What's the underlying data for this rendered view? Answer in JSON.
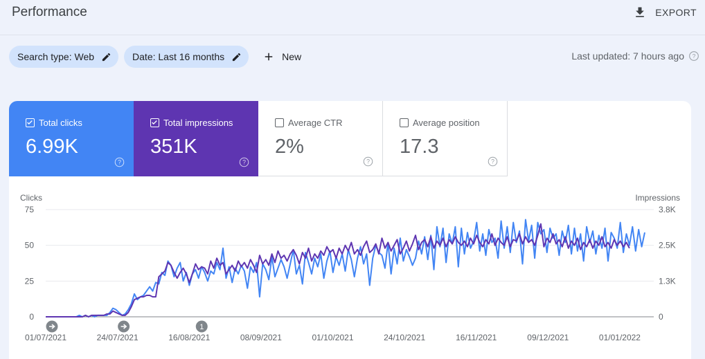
{
  "header": {
    "title": "Performance",
    "export_label": "EXPORT"
  },
  "filters": {
    "search_type": "Search type: Web",
    "date": "Date: Last 16 months",
    "new_label": "New"
  },
  "status": {
    "last_updated": "Last updated: 7 hours ago"
  },
  "metrics": [
    {
      "label": "Total clicks",
      "value": "6.99K",
      "checked": true
    },
    {
      "label": "Total impressions",
      "value": "351K",
      "checked": true
    },
    {
      "label": "Average CTR",
      "value": "2%",
      "checked": false
    },
    {
      "label": "Average position",
      "value": "17.3",
      "checked": false
    }
  ],
  "colors": {
    "clicks": "#4285f4",
    "impressions": "#5e35b1",
    "chip": "#d2e3fc"
  },
  "chart_data": {
    "type": "line",
    "left_axis": {
      "label": "Clicks",
      "ticks": [
        "0",
        "25",
        "50",
        "75"
      ],
      "ylim": [
        0,
        75
      ]
    },
    "right_axis": {
      "label": "Impressions",
      "ticks": [
        "0",
        "1.3K",
        "2.5K",
        "3.8K"
      ],
      "ylim": [
        0,
        3800
      ]
    },
    "x_tick_labels": [
      "01/07/2021",
      "24/07/2021",
      "16/08/2021",
      "08/09/2021",
      "01/10/2021",
      "24/10/2021",
      "16/11/2021",
      "09/12/2021",
      "01/01/2022"
    ],
    "annotations": [
      {
        "day": 0,
        "kind": "arrow",
        "label": ""
      },
      {
        "day": 23,
        "kind": "arrow",
        "label": ""
      },
      {
        "day": 48,
        "kind": "number",
        "label": "1"
      }
    ],
    "series": [
      {
        "name": "Total clicks",
        "axis": "left",
        "values": [
          0,
          0,
          0,
          0,
          0,
          0,
          0,
          0,
          0,
          0,
          0,
          1,
          0,
          1,
          0,
          1,
          0,
          1,
          1,
          1,
          1,
          3,
          6,
          5,
          3,
          1,
          2,
          5,
          9,
          16,
          12,
          14,
          15,
          18,
          21,
          18,
          24,
          23,
          31,
          29,
          39,
          36,
          28,
          34,
          38,
          25,
          31,
          22,
          30,
          33,
          27,
          35,
          31,
          25,
          32,
          30,
          38,
          33,
          48,
          27,
          35,
          24,
          34,
          30,
          36,
          32,
          20,
          35,
          31,
          38,
          14,
          37,
          33,
          26,
          42,
          28,
          34,
          40,
          35,
          27,
          37,
          47,
          30,
          36,
          23,
          45,
          38,
          30,
          41,
          35,
          44,
          27,
          39,
          46,
          31,
          42,
          36,
          44,
          32,
          47,
          40,
          28,
          41,
          49,
          37,
          44,
          22,
          41,
          50,
          45,
          43,
          34,
          52,
          30,
          48,
          37,
          55,
          39,
          47,
          42,
          36,
          41,
          53,
          44,
          56,
          40,
          57,
          33,
          63,
          49,
          62,
          38,
          58,
          51,
          63,
          35,
          62,
          44,
          59,
          48,
          53,
          66,
          46,
          58,
          43,
          61,
          52,
          55,
          41,
          67,
          48,
          63,
          45,
          66,
          52,
          60,
          37,
          68,
          53,
          64,
          41,
          66,
          58,
          61,
          45,
          62,
          55,
          58,
          43,
          60,
          52,
          64,
          44,
          62,
          46,
          58,
          39,
          63,
          52,
          60,
          44,
          57,
          48,
          62,
          39,
          59,
          55,
          48,
          66,
          45,
          58,
          50,
          63,
          46,
          61,
          49,
          59
        ],
        "color": "#4285f4"
      },
      {
        "name": "Total impressions",
        "axis": "left",
        "values": [
          0,
          0,
          0,
          0,
          0,
          0,
          0,
          0,
          0,
          0,
          0,
          0,
          0,
          1,
          0,
          1,
          1,
          1,
          1,
          1,
          2,
          2,
          4,
          3,
          2,
          1,
          1,
          3,
          7,
          12,
          13,
          14,
          14,
          15,
          15,
          14,
          14,
          28,
          30,
          32,
          38,
          36,
          31,
          27,
          31,
          34,
          30,
          24,
          30,
          37,
          33,
          35,
          34,
          30,
          39,
          34,
          41,
          36,
          38,
          30,
          33,
          36,
          32,
          39,
          35,
          38,
          34,
          40,
          36,
          31,
          43,
          37,
          40,
          36,
          44,
          38,
          46,
          41,
          43,
          39,
          44,
          47,
          43,
          37,
          45,
          41,
          48,
          39,
          44,
          41,
          46,
          43,
          49,
          45,
          47,
          41,
          48,
          44,
          50,
          46,
          52,
          44,
          47,
          43,
          49,
          53,
          45,
          47,
          51,
          44,
          55,
          48,
          52,
          46,
          50,
          54,
          44,
          48,
          53,
          46,
          51,
          57,
          47,
          52,
          54,
          49,
          56,
          48,
          53,
          50,
          55,
          49,
          54,
          51,
          56,
          52,
          50,
          53,
          49,
          55,
          51,
          57,
          52,
          49,
          54,
          51,
          58,
          50,
          55,
          52,
          50,
          56,
          49,
          54,
          53,
          58,
          51,
          56,
          52,
          54,
          50,
          57,
          65,
          49,
          55,
          52,
          58,
          51,
          54,
          49,
          56,
          48,
          53,
          50,
          55,
          47,
          52,
          49,
          54,
          48,
          53,
          50,
          56,
          49,
          52,
          48,
          54,
          50,
          53,
          49,
          52,
          48
        ],
        "color": "#5e35b1"
      }
    ]
  }
}
